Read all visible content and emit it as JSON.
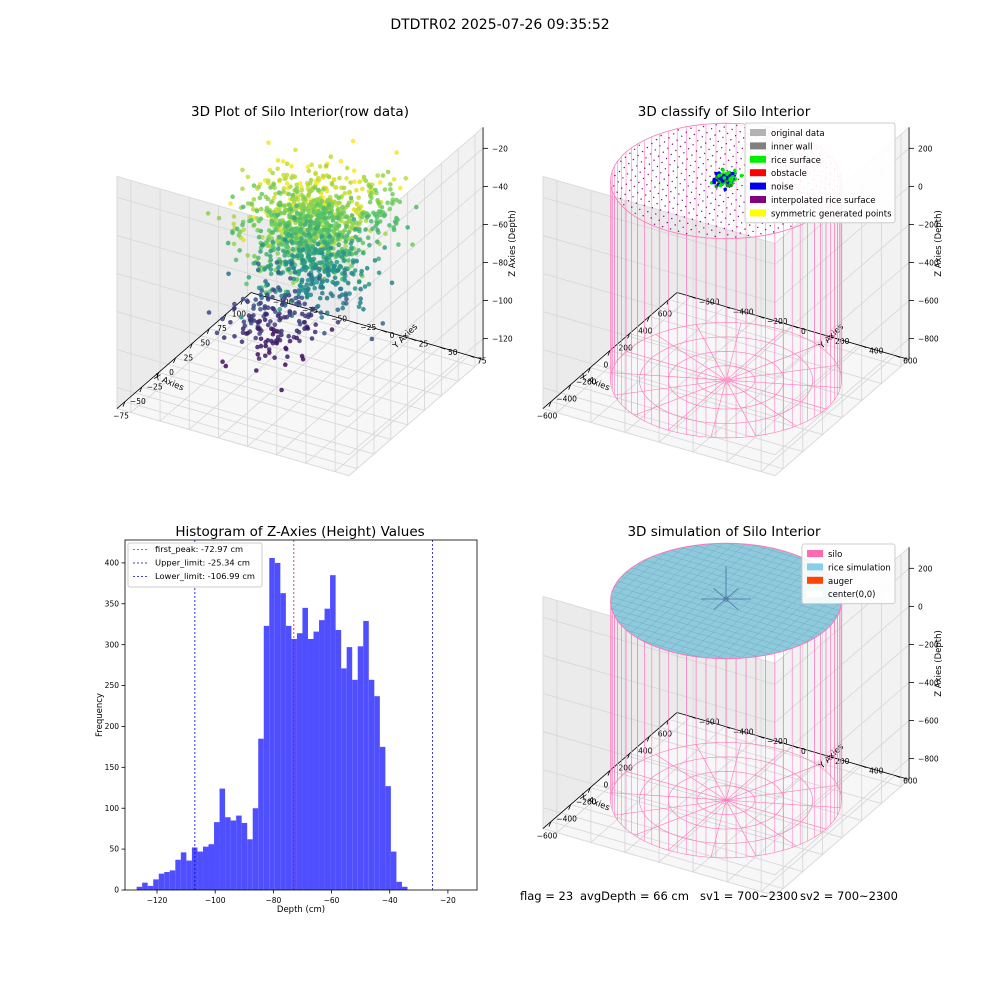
{
  "figure": {
    "title": "DTDTR02 2025-07-26 09:35:52"
  },
  "footer": {
    "flag": "flag = 23",
    "avg_depth": "avgDepth = 66 cm",
    "sv1": "sv1 = 700~2300",
    "sv2": "sv2 = 700~2300"
  },
  "chart_data": [
    {
      "type": "scatter",
      "title": "3D Plot of Silo Interior(row data)",
      "xlabel": "X Axies",
      "ylabel": "Y Axies",
      "zlabel": "Z Axies (Depth)",
      "x_ticks": [
        "−75",
        "−50",
        "−25",
        "0",
        "25",
        "50",
        "75",
        "100"
      ],
      "y_ticks": [
        "−100",
        "−75",
        "−50",
        "−25",
        "0",
        "25",
        "50",
        "75"
      ],
      "z_ticks": [
        "−120",
        "−100",
        "−80",
        "−60",
        "−40",
        "−20"
      ],
      "xlim": [
        -85,
        110
      ],
      "ylim": [
        -110,
        85
      ],
      "zlim": [
        -130,
        -15
      ],
      "colormap": [
        "#440154",
        "#3b528b",
        "#21918c",
        "#5ec962",
        "#fde725"
      ],
      "clusters": [
        {
          "cx": -25,
          "cy": 20,
          "cz": -35,
          "sx": 28,
          "sy": 22,
          "sz": 9,
          "n": 500
        },
        {
          "cx": 10,
          "cy": -10,
          "cz": -45,
          "sx": 22,
          "sy": 22,
          "sz": 10,
          "n": 380
        },
        {
          "cx": 20,
          "cy": 0,
          "cz": -70,
          "sx": 18,
          "sy": 18,
          "sz": 12,
          "n": 320
        },
        {
          "cx": 35,
          "cy": -45,
          "cz": -112,
          "sx": 22,
          "sy": 16,
          "sz": 8,
          "n": 160
        },
        {
          "cx": 55,
          "cy": 30,
          "cz": -50,
          "sx": 12,
          "sy": 10,
          "sz": 10,
          "n": 60
        }
      ]
    },
    {
      "type": "scatter",
      "title": "3D classify of Silo Interior",
      "xlabel": "X Axies",
      "ylabel": "Y Axies",
      "zlabel": "Z Axies (Depth)",
      "x_ticks": [
        "−600",
        "−400",
        "−200",
        "0",
        "200",
        "400",
        "600"
      ],
      "y_ticks": [
        "−600",
        "−400",
        "−200",
        "0",
        "200",
        "400",
        "600"
      ],
      "z_ticks": [
        "−800",
        "−600",
        "−400",
        "−200",
        "0",
        "200"
      ],
      "xlim": [
        -650,
        650
      ],
      "ylim": [
        -650,
        650
      ],
      "zlim": [
        -950,
        250
      ],
      "legend": [
        {
          "label": "original data",
          "color": "#b3b3b3"
        },
        {
          "label": "inner wall",
          "color": "#808080"
        },
        {
          "label": "rice surface",
          "color": "#00ee00"
        },
        {
          "label": "obstacle",
          "color": "#ff0000"
        },
        {
          "label": "noise",
          "color": "#0000ee"
        },
        {
          "label": "interpolated rice surface",
          "color": "#800080"
        },
        {
          "label": "symmetric generated points",
          "color": "#ffff00"
        }
      ],
      "legend_position": "top-right",
      "silo_radius": 560,
      "silo_top": 100,
      "silo_bottom": -930,
      "surface_depth": 100,
      "wire_color": "#ff77bb"
    },
    {
      "type": "bar",
      "title": "Histogram of Z-Axies (Height) Values",
      "xlabel": "Depth (cm)",
      "ylabel": "Frequency",
      "bin_start": -127,
      "bin_width": 1.9,
      "values": [
        4,
        9,
        5,
        13,
        20,
        22,
        24,
        37,
        46,
        36,
        52,
        47,
        53,
        56,
        83,
        124,
        89,
        85,
        91,
        82,
        62,
        100,
        185,
        323,
        406,
        400,
        363,
        323,
        307,
        314,
        345,
        307,
        316,
        330,
        344,
        385,
        318,
        271,
        297,
        257,
        298,
        329,
        257,
        237,
        175,
        127,
        47,
        10,
        4
      ],
      "xlim": [
        -131,
        -10
      ],
      "ylim": [
        0,
        428
      ],
      "x_ticks": [
        -120,
        -100,
        -80,
        -60,
        -40,
        -20
      ],
      "y_ticks": [
        0,
        50,
        100,
        150,
        200,
        250,
        300,
        350,
        400
      ],
      "bar_color": "#4b4bff",
      "vlines": [
        {
          "label": "first_peak: -72.97 cm",
          "x": -72.97,
          "color": "#e8005a"
        },
        {
          "label": "Upper_limit: -25.34 cm",
          "x": -25.34,
          "color": "#0000cc"
        },
        {
          "label": "Lower_limit: -106.99 cm",
          "x": -106.99,
          "color": "#0000cc"
        }
      ],
      "legend_position": "top-left"
    },
    {
      "type": "area",
      "title": "3D simulation of Silo Interior",
      "xlabel": "X Axies",
      "ylabel": "Y Axies",
      "zlabel": "Z Axies (Depth)",
      "x_ticks": [
        "−600",
        "−400",
        "−200",
        "0",
        "200",
        "400",
        "600"
      ],
      "y_ticks": [
        "−600",
        "−400",
        "−200",
        "0",
        "200",
        "400",
        "600"
      ],
      "z_ticks": [
        "−800",
        "−600",
        "−400",
        "−200",
        "0",
        "200"
      ],
      "xlim": [
        -650,
        650
      ],
      "ylim": [
        -650,
        650
      ],
      "zlim": [
        -950,
        250
      ],
      "legend": [
        {
          "label": "silo",
          "color": "#ff69b4"
        },
        {
          "label": "rice simulation",
          "color": "#87ceeb"
        },
        {
          "label": "auger",
          "color": "#ff4500"
        },
        {
          "label": "center(0,0)",
          "color": "#ffffff"
        }
      ],
      "legend_position": "top-right",
      "silo_radius": 560,
      "silo_top": 100,
      "silo_bottom": -930,
      "surface_depth": 66,
      "wire_color": "#ff77bb"
    }
  ]
}
